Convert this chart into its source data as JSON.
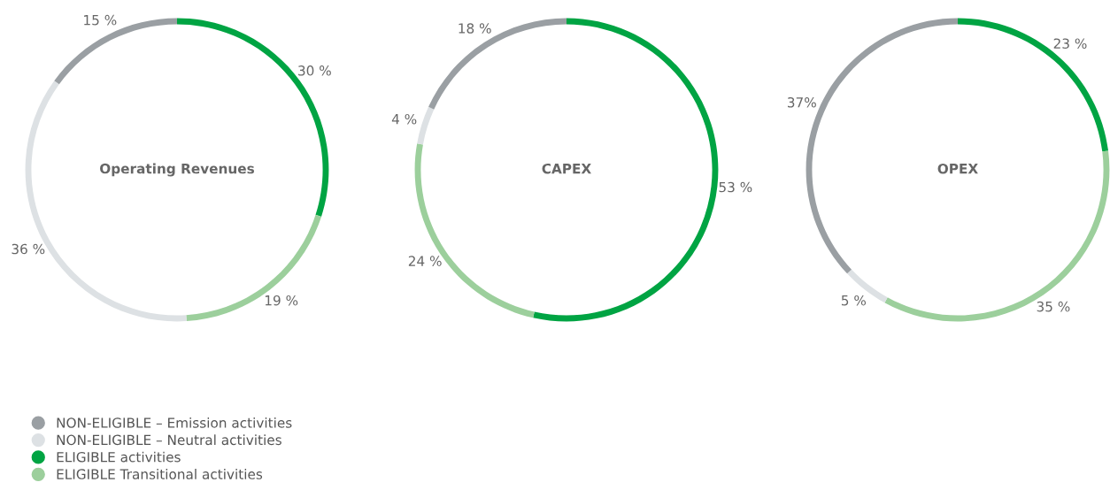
{
  "chart_data": [
    {
      "type": "donut",
      "title": "Operating Revenues",
      "categories": [
        "ELIGIBLE activities",
        "ELIGIBLE Transitional activities",
        "NON-ELIGIBLE – Neutral activities",
        "NON-ELIGIBLE – Emission activities"
      ],
      "values": [
        30,
        19,
        36,
        15
      ],
      "colors": [
        "#00a443",
        "#9ccf9c",
        "#dde1e4",
        "#9a9fa3"
      ],
      "value_labels": [
        "30 %",
        "19 %",
        "36 %",
        "15 %"
      ],
      "legend": "bottom left"
    },
    {
      "type": "donut",
      "title": "CAPEX",
      "categories": [
        null,
        null,
        null,
        null
      ],
      "values": [
        53,
        24,
        4,
        18
      ],
      "colors": [
        "#00a443",
        "#9ccf9c",
        "#dde1e4",
        "#9a9fa3"
      ],
      "value_labels": [
        "53 %",
        "24 %",
        "4 %",
        "18 %"
      ]
    },
    {
      "type": "donut",
      "title": "OPEX",
      "categories": [
        null,
        null,
        null,
        null
      ],
      "values": [
        23,
        35,
        5,
        37
      ],
      "colors": [
        "#00a443",
        "#9ccf9c",
        "#dde1e4",
        "#9a9fa3"
      ],
      "value_labels": [
        "23 %",
        "35 %",
        "5 %",
        "37%"
      ]
    }
  ]
}
